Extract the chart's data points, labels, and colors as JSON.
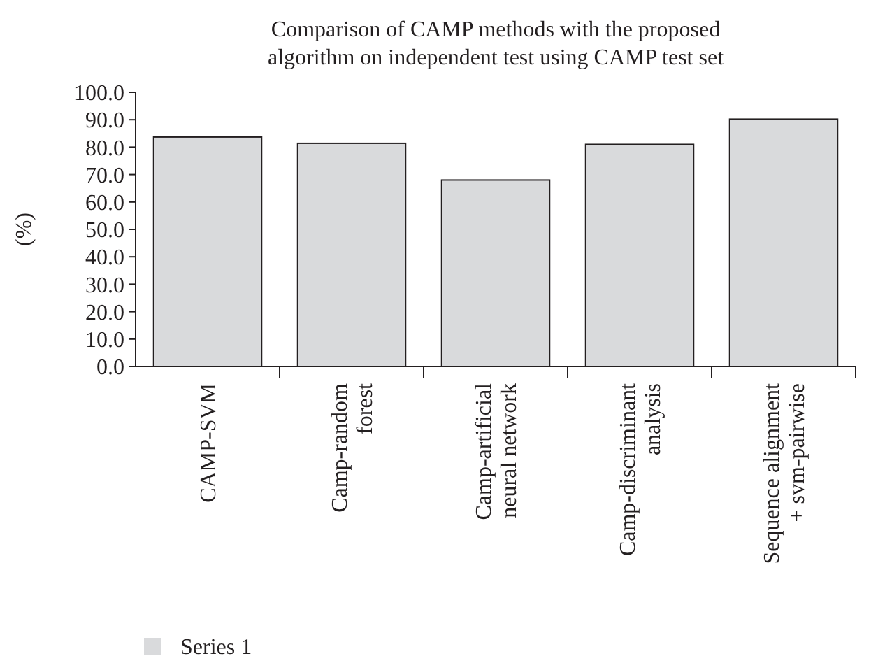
{
  "chart_data": {
    "type": "bar",
    "title": "Comparison of CAMP methods with the proposed algorithm on independent test using CAMP test set",
    "ylabel": "(%)",
    "categories": [
      "CAMP-SVM",
      "Camp-random forest",
      "Camp-artificial neural network",
      "Camp-discriminant analysis",
      "Sequence alignment + svm-pairwise"
    ],
    "series": [
      {
        "name": "Series 1",
        "color": "#d9dadc",
        "values": [
          83.7,
          81.4,
          68.0,
          81.0,
          90.2
        ]
      }
    ],
    "ylim": [
      0,
      100
    ],
    "yticks": [
      {
        "value": 0,
        "label": "0.0"
      },
      {
        "value": 10,
        "label": "10.0"
      },
      {
        "value": 20,
        "label": "20.0"
      },
      {
        "value": 30,
        "label": "30.0"
      },
      {
        "value": 40,
        "label": "40.0"
      },
      {
        "value": 50,
        "label": "50.0"
      },
      {
        "value": 60,
        "label": "60.0"
      },
      {
        "value": 70,
        "label": "70.0"
      },
      {
        "value": 80,
        "label": "80.0"
      },
      {
        "value": 90,
        "label": "90.0"
      },
      {
        "value": 100,
        "label": "100.0"
      }
    ],
    "grid": false,
    "legend": "bottom left"
  }
}
